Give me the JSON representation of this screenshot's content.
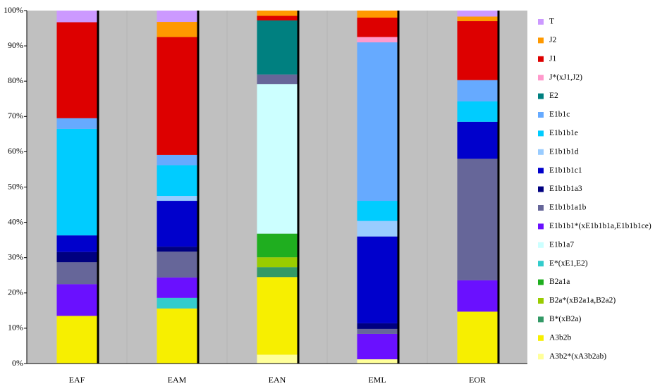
{
  "chart_data": {
    "type": "bar",
    "stacked": true,
    "legend": "right",
    "grid": false,
    "categories": [
      "EAF",
      "EAM",
      "EAN",
      "EML",
      "EOR"
    ],
    "ylim": [
      0,
      100
    ],
    "yticks": [
      {
        "value": 0,
        "label": "0%"
      },
      {
        "value": 10,
        "label": "10%"
      },
      {
        "value": 20,
        "label": "20%"
      },
      {
        "value": 30,
        "label": "30%"
      },
      {
        "value": 40,
        "label": "40%"
      },
      {
        "value": 50,
        "label": "50%"
      },
      {
        "value": 60,
        "label": "60%"
      },
      {
        "value": 70,
        "label": "70%"
      },
      {
        "value": 80,
        "label": "80%"
      },
      {
        "value": 90,
        "label": "90%"
      },
      {
        "value": 100,
        "label": "100%"
      }
    ],
    "series": [
      {
        "name": "A3b2*(xA3b2ab)",
        "color": "#ffff99",
        "values": [
          0,
          0,
          2.5,
          1.2,
          0
        ]
      },
      {
        "name": "A3b2b",
        "color": "#f7ef00",
        "values": [
          13.5,
          15.6,
          22,
          0,
          14.7
        ]
      },
      {
        "name": "B*(xB2a)",
        "color": "#339966",
        "values": [
          0,
          0,
          2.8,
          0,
          0
        ]
      },
      {
        "name": "B2a*(xB2a1a,B2a2)",
        "color": "#99cc00",
        "values": [
          0,
          0,
          2.8,
          0,
          0
        ]
      },
      {
        "name": "B2a1a",
        "color": "#1fae1f",
        "values": [
          0,
          0,
          6.7,
          0,
          0
        ]
      },
      {
        "name": "E*(xE1,E2)",
        "color": "#33cccc",
        "values": [
          0,
          3,
          0,
          0,
          0
        ]
      },
      {
        "name": "E1b1a7",
        "color": "#ccffff",
        "values": [
          0,
          0,
          42.4,
          0,
          0
        ]
      },
      {
        "name": "E1b1b1*(xE1b1b1a,E1b1b1ce)",
        "color": "#6a10ff",
        "values": [
          9,
          5.8,
          0,
          7.2,
          8.9
        ]
      },
      {
        "name": "E1b1b1a1b",
        "color": "#666699",
        "values": [
          6.2,
          7.3,
          2.7,
          1.4,
          34.4
        ]
      },
      {
        "name": "E1b1b1a3",
        "color": "#000080",
        "values": [
          2.9,
          1.4,
          0,
          1.6,
          0
        ]
      },
      {
        "name": "E1b1b1c1",
        "color": "#0000cc",
        "values": [
          4.7,
          13,
          0,
          24.6,
          10.5
        ]
      },
      {
        "name": "E1b1b1d",
        "color": "#99ccff",
        "values": [
          0,
          1.4,
          0,
          4.4,
          0
        ]
      },
      {
        "name": "E1b1b1e",
        "color": "#00ccff",
        "values": [
          30.2,
          8.7,
          0,
          5.7,
          5.8
        ]
      },
      {
        "name": "E1b1c",
        "color": "#66aaff",
        "values": [
          3,
          2.9,
          0,
          44.9,
          6
        ]
      },
      {
        "name": "E2",
        "color": "#008080",
        "values": [
          0,
          0,
          15.3,
          0,
          0
        ]
      },
      {
        "name": "J*(xJ1,J2)",
        "color": "#ff99cc",
        "values": [
          0,
          0,
          0,
          1.5,
          0
        ]
      },
      {
        "name": "J1",
        "color": "#dd0000",
        "values": [
          27.2,
          33.4,
          1.3,
          5.5,
          16.7
        ]
      },
      {
        "name": "J2",
        "color": "#ff9900",
        "values": [
          0,
          4.3,
          1.5,
          2,
          1.3
        ]
      },
      {
        "name": "T",
        "color": "#cc99ff",
        "values": [
          3.3,
          3.2,
          0,
          0,
          1.7
        ]
      }
    ]
  }
}
